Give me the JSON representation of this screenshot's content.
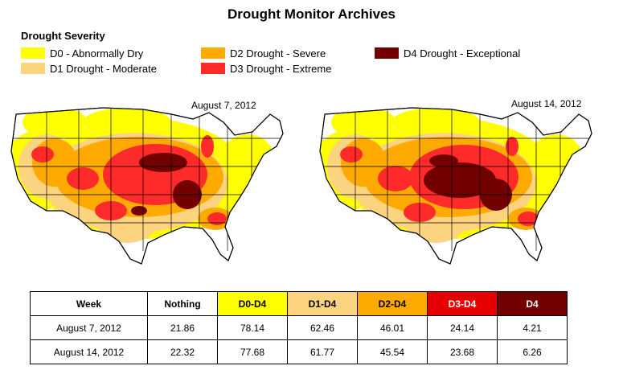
{
  "title": "Drought Monitor Archives",
  "legend": {
    "title": "Drought Severity",
    "items": [
      {
        "label": "D0 - Abnormally Dry",
        "color": "#ffff00"
      },
      {
        "label": "D1 Drought - Moderate",
        "color": "#fcd37f"
      },
      {
        "label": "D2 Drought - Severe",
        "color": "#ffaa00"
      },
      {
        "label": "D3 Drought - Extreme",
        "color": "#ff2a2a"
      },
      {
        "label": "D4 Drought - Exceptional",
        "color": "#730000"
      }
    ]
  },
  "maps": [
    {
      "date": "August 7, 2012"
    },
    {
      "date": "August 14, 2012"
    }
  ],
  "table": {
    "headers": [
      {
        "label": "Week",
        "bg": "#ffffff",
        "fg": "#000000"
      },
      {
        "label": "Nothing",
        "bg": "#ffffff",
        "fg": "#000000"
      },
      {
        "label": "D0-D4",
        "bg": "#ffff00",
        "fg": "#000000"
      },
      {
        "label": "D1-D4",
        "bg": "#fcd37f",
        "fg": "#000000"
      },
      {
        "label": "D2-D4",
        "bg": "#ffaa00",
        "fg": "#000000"
      },
      {
        "label": "D3-D4",
        "bg": "#e60000",
        "fg": "#ffffff"
      },
      {
        "label": "D4",
        "bg": "#730000",
        "fg": "#ffffff"
      }
    ],
    "rows": [
      [
        "August 7, 2012",
        "21.86",
        "78.14",
        "62.46",
        "46.01",
        "24.14",
        "4.21"
      ],
      [
        "August 14, 2012",
        "22.32",
        "77.68",
        "61.77",
        "45.54",
        "23.68",
        "6.26"
      ]
    ]
  }
}
